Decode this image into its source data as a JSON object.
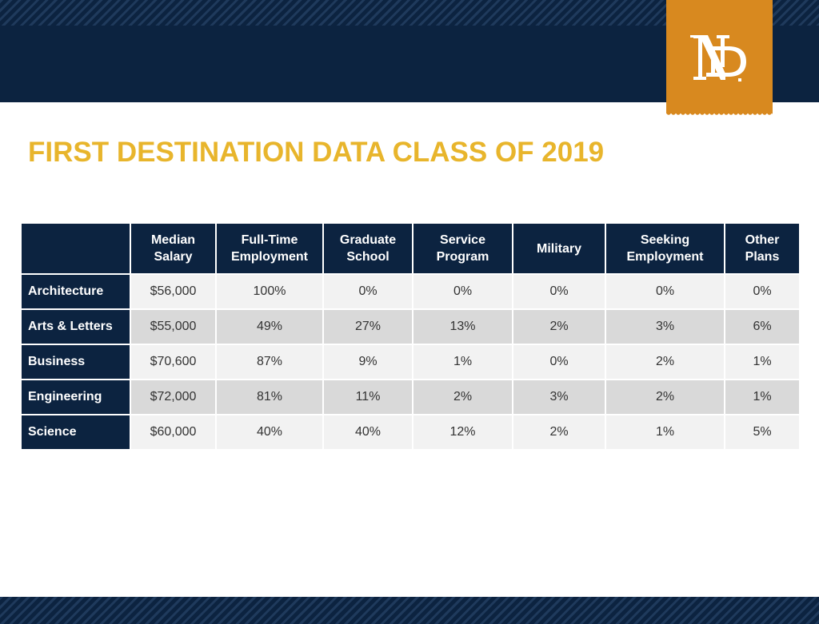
{
  "page": {
    "title": "FIRST DESTINATION DATA CLASS OF 2019",
    "logo_text": "ND"
  },
  "colors": {
    "navy": "#0c2340",
    "gold": "#e8b52c",
    "orange_tab": "#d8891f",
    "row_light": "#f2f2f2",
    "row_dark": "#d9d9d9"
  },
  "table": {
    "corner": "",
    "headers": [
      "Median\nSalary",
      "Full-Time\nEmployment",
      "Graduate\nSchool",
      "Service\nProgram",
      "Military",
      "Seeking\nEmployment",
      "Other\nPlans"
    ],
    "rows": [
      {
        "label": "Architecture",
        "cells": [
          "$56,000",
          "100%",
          "0%",
          "0%",
          "0%",
          "0%",
          "0%"
        ]
      },
      {
        "label": "Arts & Letters",
        "cells": [
          "$55,000",
          "49%",
          "27%",
          "13%",
          "2%",
          "3%",
          "6%"
        ]
      },
      {
        "label": "Business",
        "cells": [
          "$70,600",
          "87%",
          "9%",
          "1%",
          "0%",
          "2%",
          "1%"
        ]
      },
      {
        "label": "Engineering",
        "cells": [
          "$72,000",
          "81%",
          "11%",
          "2%",
          "3%",
          "2%",
          "1%"
        ]
      },
      {
        "label": "Science",
        "cells": [
          "$60,000",
          "40%",
          "40%",
          "12%",
          "2%",
          "1%",
          "5%"
        ]
      }
    ]
  }
}
